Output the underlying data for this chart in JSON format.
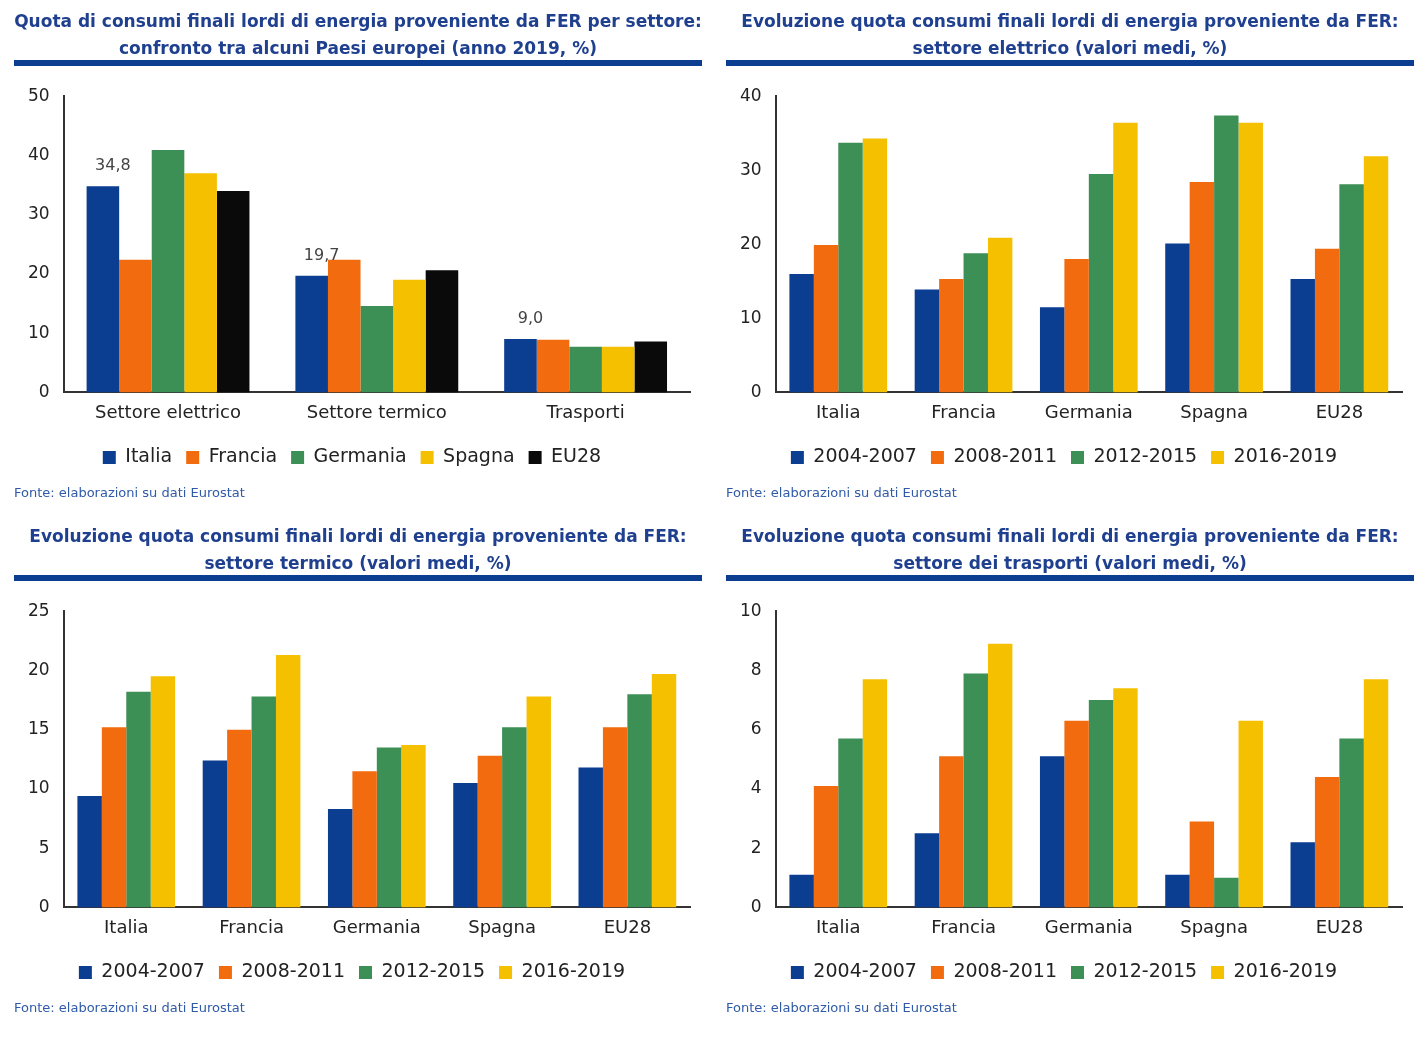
{
  "chart_data": [
    {
      "type": "bar",
      "title": "Quota di consumi finali lordi di energia proveniente da FER per settore: confronto tra alcuni Paesi europei (anno 2019, %)",
      "categories": [
        "Settore elettrico",
        "Settore termico",
        "Trasporti"
      ],
      "series": [
        {
          "name": "Italia",
          "color": "#0b3d91",
          "values": [
            34.8,
            19.7,
            9.0
          ],
          "value_labels": [
            "34,8",
            "19,7",
            "9,0"
          ]
        },
        {
          "name": "Francia",
          "color": "#f26b0f",
          "values": [
            22.4,
            22.4,
            8.9
          ]
        },
        {
          "name": "Germania",
          "color": "#3c8f55",
          "values": [
            40.9,
            14.6,
            7.7
          ]
        },
        {
          "name": "Spagna",
          "color": "#f5c000",
          "values": [
            37.0,
            19.0,
            7.7
          ]
        },
        {
          "name": "EU28",
          "color": "#0a0a0a",
          "values": [
            34.0,
            20.6,
            8.6
          ]
        }
      ],
      "ylim": [
        0,
        50
      ],
      "yticks": [
        0,
        10,
        20,
        30,
        40,
        50
      ],
      "legend": "bottom",
      "annotations": [
        "Fonte: elaborazioni su dati Eurostat"
      ]
    },
    {
      "type": "bar",
      "title": "Evoluzione quota consumi finali lordi di energia proveniente da FER: settore elettrico (valori medi, %)",
      "categories": [
        "Italia",
        "Francia",
        "Germania",
        "Spagna",
        "EU28"
      ],
      "series": [
        {
          "name": "2004-2007",
          "color": "#0b3d91",
          "values": [
            16.0,
            13.9,
            11.5,
            20.1,
            15.3
          ]
        },
        {
          "name": "2008-2011",
          "color": "#f26b0f",
          "values": [
            19.9,
            15.3,
            18.0,
            28.4,
            19.4
          ]
        },
        {
          "name": "2012-2015",
          "color": "#3c8f55",
          "values": [
            33.7,
            18.8,
            29.5,
            37.4,
            28.1
          ]
        },
        {
          "name": "2016-2019",
          "color": "#f5c000",
          "values": [
            34.3,
            20.9,
            36.4,
            36.4,
            31.9
          ]
        }
      ],
      "ylim": [
        0,
        40
      ],
      "yticks": [
        0,
        10,
        20,
        30,
        40
      ],
      "legend": "bottom",
      "annotations": [
        "Fonte: elaborazioni su dati Eurostat"
      ]
    },
    {
      "type": "bar",
      "title": "Evoluzione quota consumi finali lordi di energia proveniente da FER: settore termico (valori medi, %)",
      "categories": [
        "Italia",
        "Francia",
        "Germania",
        "Spagna",
        "EU28"
      ],
      "series": [
        {
          "name": "2004-2007",
          "color": "#0b3d91",
          "values": [
            9.4,
            12.4,
            8.3,
            10.5,
            11.8
          ]
        },
        {
          "name": "2008-2011",
          "color": "#f26b0f",
          "values": [
            15.2,
            15.0,
            11.5,
            12.8,
            15.2
          ]
        },
        {
          "name": "2012-2015",
          "color": "#3c8f55",
          "values": [
            18.2,
            17.8,
            13.5,
            15.2,
            18.0
          ]
        },
        {
          "name": "2016-2019",
          "color": "#f5c000",
          "values": [
            19.5,
            21.3,
            13.7,
            17.8,
            19.7
          ]
        }
      ],
      "ylim": [
        0,
        25
      ],
      "yticks": [
        0,
        5,
        10,
        15,
        20,
        25
      ],
      "legend": "bottom",
      "annotations": [
        "Fonte: elaborazioni su dati Eurostat"
      ]
    },
    {
      "type": "bar",
      "title": "Evoluzione quota consumi finali lordi di energia proveniente da FER: settore dei trasporti (valori medi, %)",
      "categories": [
        "Italia",
        "Francia",
        "Germania",
        "Spagna",
        "EU28"
      ],
      "series": [
        {
          "name": "2004-2007",
          "color": "#0b3d91",
          "values": [
            1.1,
            2.5,
            5.1,
            1.1,
            2.2
          ]
        },
        {
          "name": "2008-2011",
          "color": "#f26b0f",
          "values": [
            4.1,
            5.1,
            6.3,
            2.9,
            4.4
          ]
        },
        {
          "name": "2012-2015",
          "color": "#3c8f55",
          "values": [
            5.7,
            7.9,
            7.0,
            1.0,
            5.7
          ]
        },
        {
          "name": "2016-2019",
          "color": "#f5c000",
          "values": [
            7.7,
            8.9,
            7.4,
            6.3,
            7.7
          ]
        }
      ],
      "ylim": [
        0,
        10
      ],
      "yticks": [
        0,
        2,
        4,
        6,
        8,
        10
      ],
      "legend": "bottom",
      "annotations": [
        "Fonte: elaborazioni su dati Eurostat"
      ]
    }
  ]
}
